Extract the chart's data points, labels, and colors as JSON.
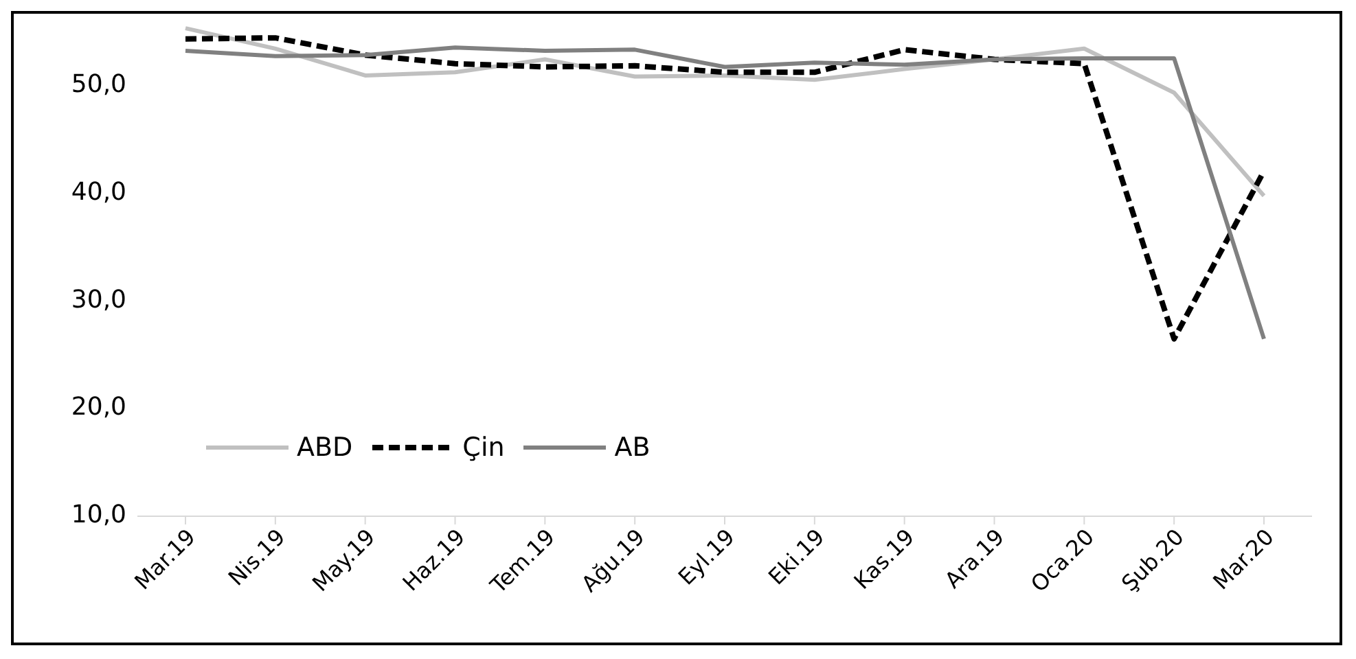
{
  "chart_data": {
    "type": "line",
    "categories": [
      "Mar.19",
      "Nis.19",
      "May.19",
      "Haz.19",
      "Tem.19",
      "Ağu.19",
      "Eyl.19",
      "Eki.19",
      "Kas.19",
      "Ara.19",
      "Oca.20",
      "Şub.20",
      "Mar.20"
    ],
    "series": [
      {
        "name": "ABD",
        "color": "#c0c0c0",
        "line_style": "solid",
        "values": [
          55.4,
          53.5,
          51.0,
          51.3,
          52.5,
          50.9,
          51.0,
          50.6,
          51.6,
          52.5,
          53.5,
          49.4,
          39.8
        ]
      },
      {
        "name": "Çin",
        "color": "#000000",
        "line_style": "dashed",
        "values": [
          54.4,
          54.5,
          52.9,
          52.1,
          51.8,
          51.9,
          51.3,
          51.3,
          53.4,
          52.5,
          52.1,
          26.5,
          42.1
        ]
      },
      {
        "name": "AB",
        "color": "#808080",
        "line_style": "solid",
        "values": [
          53.3,
          52.8,
          52.9,
          53.6,
          53.3,
          53.4,
          51.8,
          52.2,
          52.0,
          52.5,
          52.6,
          52.6,
          26.5
        ]
      }
    ],
    "ylim": [
      10,
      57
    ],
    "yticks": [
      {
        "value": 10,
        "label": "10,0"
      },
      {
        "value": 20,
        "label": "20,0"
      },
      {
        "value": 30,
        "label": "30,0"
      },
      {
        "value": 40,
        "label": "40,0"
      },
      {
        "value": 50,
        "label": "50,0"
      }
    ],
    "grid": false,
    "legend": "bottom left",
    "marker": "none"
  }
}
